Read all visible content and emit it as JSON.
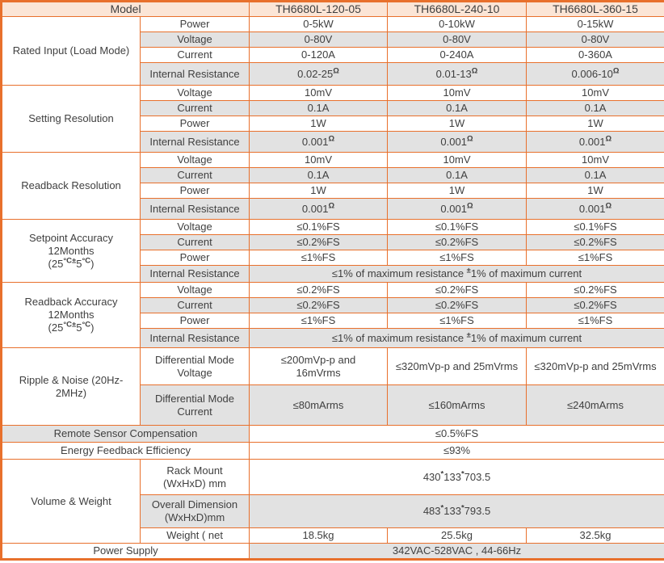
{
  "theme": {
    "border": "#e8702c",
    "peach": "#fbe5d6",
    "gray": "#e2e2e2",
    "text": "#3f3f3f",
    "page": "#ffffff"
  },
  "header": {
    "model_label": "Model",
    "models": [
      "TH6680L-120-05",
      "TH6680L-240-10",
      "TH6680L-360-15"
    ]
  },
  "sections": [
    {
      "label": "Rated Input (Load Mode)",
      "rows": [
        {
          "param": "Power",
          "values": [
            "0-5kW",
            "0-10kW",
            "0-15kW"
          ]
        },
        {
          "param": "Voltage",
          "values": [
            "0-80V",
            "0-80V",
            "0-80V"
          ]
        },
        {
          "param": "Current",
          "values": [
            "0-120A",
            "0-240A",
            "0-360A"
          ]
        },
        {
          "param": "Internal Resistance",
          "values": [
            "0.02-25^{Ω}",
            "0.01-13^{Ω}",
            "0.006-10^{Ω}"
          ]
        }
      ]
    },
    {
      "label": "Setting Resolution",
      "rows": [
        {
          "param": "Voltage",
          "values": [
            "10mV",
            "10mV",
            "10mV"
          ]
        },
        {
          "param": "Current",
          "values": [
            "0.1A",
            "0.1A",
            "0.1A"
          ]
        },
        {
          "param": "Power",
          "values": [
            "1W",
            "1W",
            "1W"
          ]
        },
        {
          "param": "Internal Resistance",
          "values": [
            "0.001^{Ω}",
            "0.001^{Ω}",
            "0.001^{Ω}"
          ]
        }
      ]
    },
    {
      "label": "Readback Resolution",
      "rows": [
        {
          "param": "Voltage",
          "values": [
            "10mV",
            "10mV",
            "10mV"
          ]
        },
        {
          "param": "Current",
          "values": [
            "0.1A",
            "0.1A",
            "0.1A"
          ]
        },
        {
          "param": "Power",
          "values": [
            "1W",
            "1W",
            "1W"
          ]
        },
        {
          "param": "Internal Resistance",
          "values": [
            "0.001^{Ω}",
            "0.001^{Ω}",
            "0.001^{Ω}"
          ]
        }
      ]
    },
    {
      "label": "Setpoint Accuracy\n12Months\n(25^{°C±}5^{°C})",
      "rows": [
        {
          "param": "Voltage",
          "values": [
            "≤0.1%FS",
            "≤0.1%FS",
            "≤0.1%FS"
          ]
        },
        {
          "param": "Current",
          "values": [
            "≤0.2%FS",
            "≤0.2%FS",
            "≤0.2%FS"
          ]
        },
        {
          "param": "Power",
          "values": [
            "≤1%FS",
            "≤1%FS",
            "≤1%FS"
          ]
        },
        {
          "param": "Internal Resistance",
          "span_value": "≤1% of maximum resistance ^{±}1% of maximum current"
        }
      ]
    },
    {
      "label": "Readback Accuracy\n12Months\n(25^{°C±}5^{°C})",
      "rows": [
        {
          "param": "Voltage",
          "values": [
            "≤0.2%FS",
            "≤0.2%FS",
            "≤0.2%FS"
          ]
        },
        {
          "param": "Current",
          "values": [
            "≤0.2%FS",
            "≤0.2%FS",
            "≤0.2%FS"
          ]
        },
        {
          "param": "Power",
          "values": [
            "≤1%FS",
            "≤1%FS",
            "≤1%FS"
          ]
        },
        {
          "param": "Internal Resistance",
          "span_value": "≤1% of maximum resistance ^{±}1% of maximum current"
        }
      ]
    },
    {
      "label": "Ripple & Noise (20Hz-\n2MHz)",
      "rows": [
        {
          "param": "Differential Mode\nVoltage",
          "values": [
            "≤200mVp-p and\n16mVrms",
            "≤320mVp-p and 25mVrms",
            "≤320mVp-p and 25mVrms"
          ]
        },
        {
          "param": "Differential Mode\nCurrent",
          "values": [
            "≤80mArms",
            "≤160mArms",
            "≤240mArms"
          ]
        }
      ]
    },
    {
      "label": "Remote Sensor Compensation",
      "value": "≤0.5%FS"
    },
    {
      "label": "Energy Feedback Efficiency",
      "value": "≤93%"
    },
    {
      "label": "Volume & Weight",
      "rows": [
        {
          "param": "Rack Mount\n(WxHxD) mm",
          "span_value": "430^{*}133^{*}703.5"
        },
        {
          "param": "Overall Dimension\n(WxHxD)mm",
          "span_value": "483^{*}133^{*}793.5"
        },
        {
          "param": "Weight ( net",
          "values": [
            "18.5kg",
            "25.5kg",
            "32.5kg"
          ]
        }
      ]
    },
    {
      "label": "Power Supply",
      "value": "342VAC-528VAC , 44-66Hz"
    }
  ]
}
